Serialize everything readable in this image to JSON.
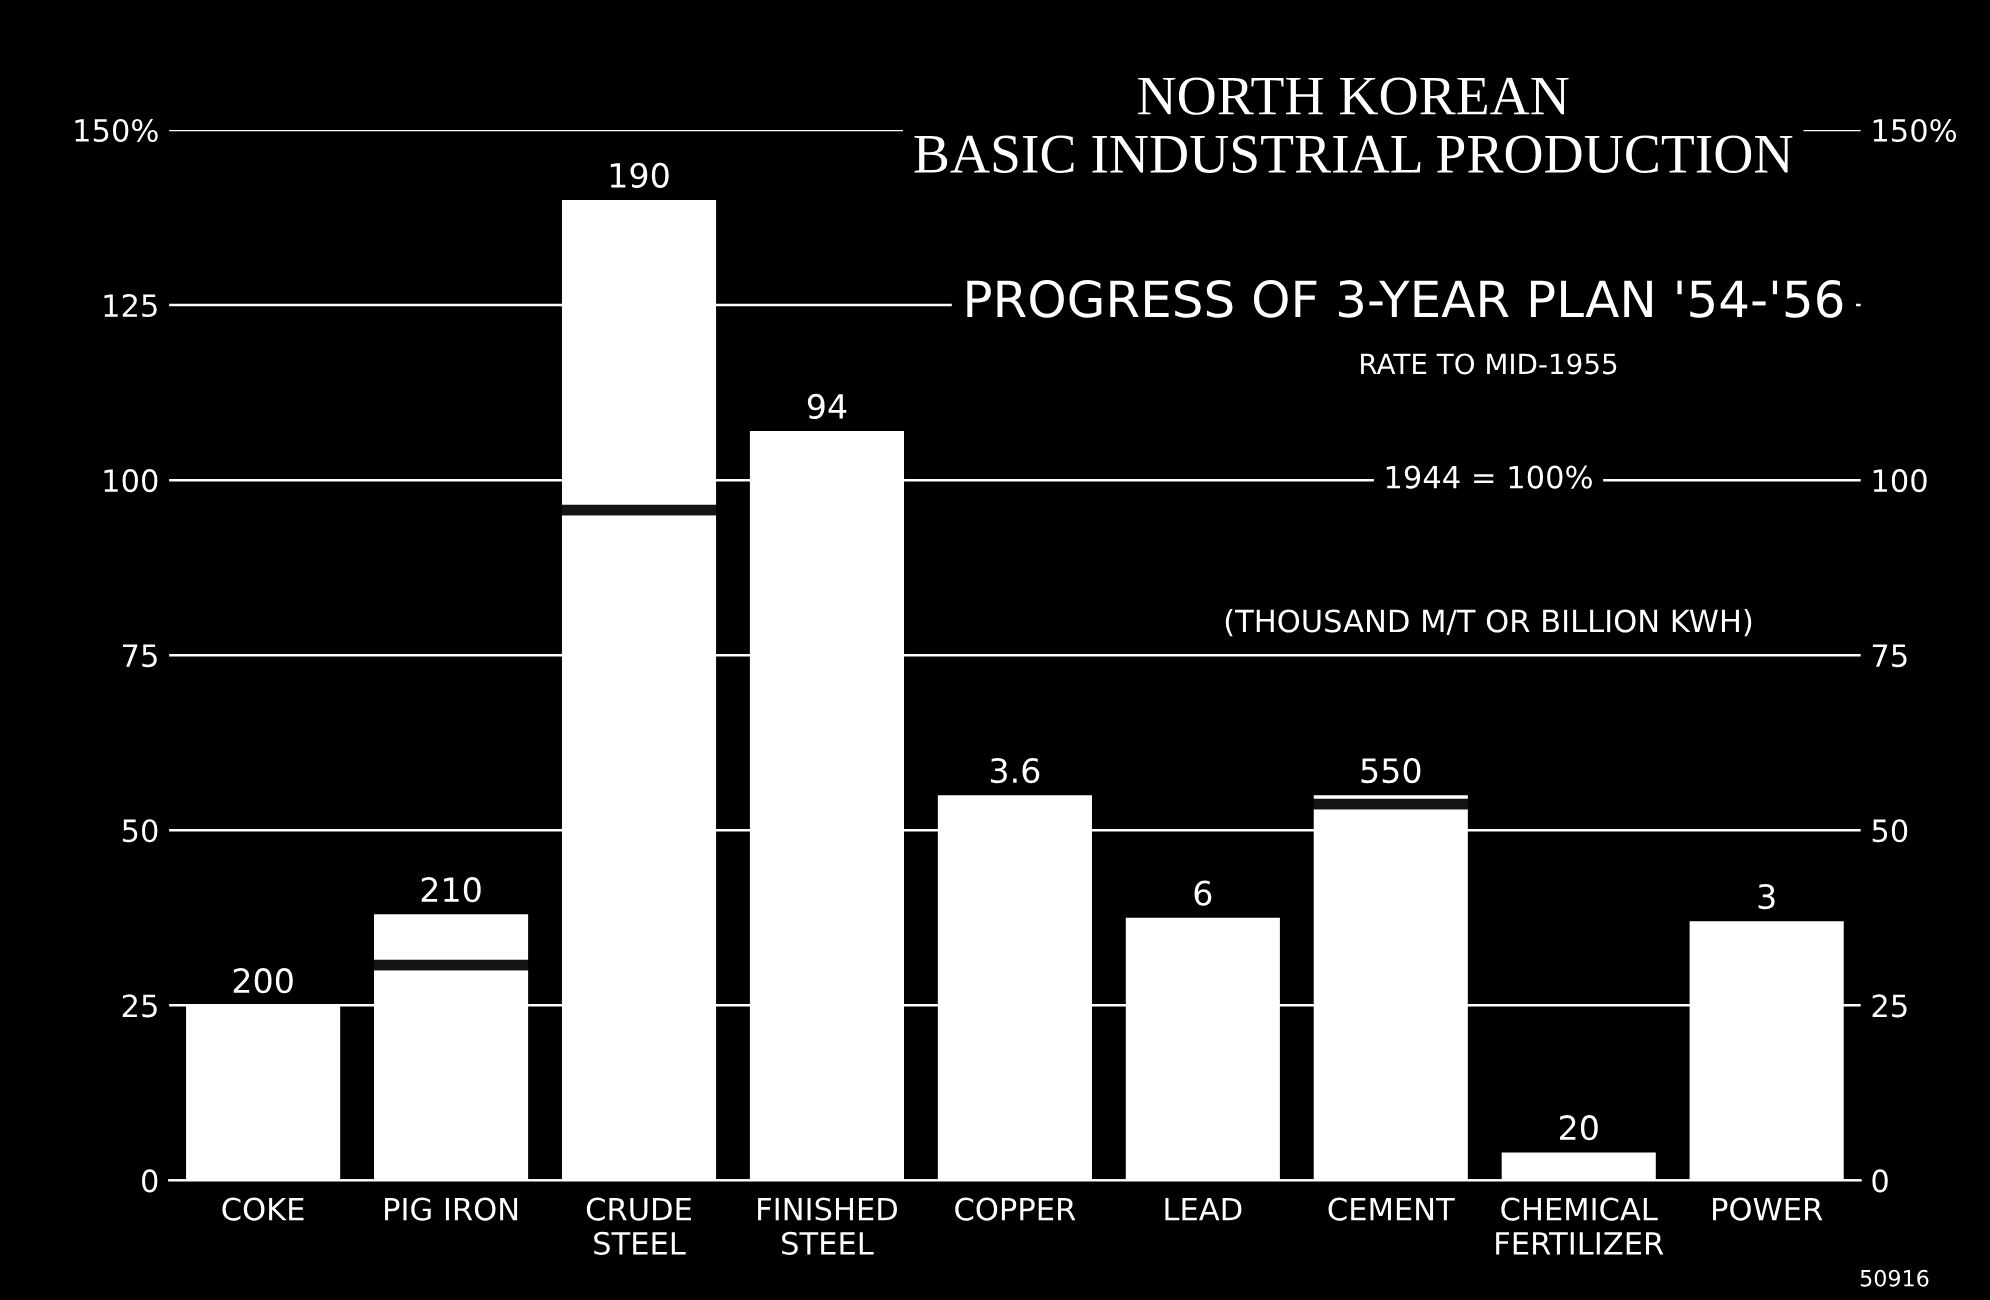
{
  "chart_data": {
    "type": "bar",
    "title": "NORTH KOREAN\nBASIC INDUSTRIAL PRODUCTION",
    "subtitle": "PROGRESS OF 3-YEAR PLAN '54-'56",
    "categories": [
      "COKE",
      "PIG IRON",
      "CRUDE\nSTEEL",
      "FINISHED\nSTEEL",
      "COPPER",
      "LEAD",
      "CEMENT",
      "CHEMICAL\nFERTILIZER",
      "POWER"
    ],
    "stacked": true,
    "series": [
      {
        "color": "#ffffff",
        "values": [
          25,
          30,
          95,
          107,
          55,
          37.5,
          53,
          4,
          37
        ]
      },
      {
        "color": "#141414",
        "values": [
          null,
          1.5,
          1.5,
          null,
          null,
          null,
          1.5,
          null,
          null
        ]
      },
      {
        "color": "#ffffff",
        "values": [
          null,
          6.5,
          43.5,
          null,
          null,
          null,
          0.5,
          null,
          null
        ]
      }
    ],
    "value_labels": [
      "200",
      "210",
      "190",
      "94",
      "3.6",
      "6",
      "550",
      "20",
      "3"
    ],
    "ylim": [
      0,
      150
    ],
    "yticks": [
      0,
      25,
      50,
      75,
      100,
      125,
      {
        "value": 150,
        "label": "150%"
      }
    ],
    "y2lim": [
      0,
      150
    ],
    "y2ticks": [
      0,
      25,
      50,
      75,
      100,
      {
        "value": 150,
        "label": "150%"
      }
    ],
    "grid": "y",
    "legend": false,
    "annotations": [
      "RATE TO MID-1955",
      "1944 = 100%",
      "(THOUSAND M/T OR BILLION KWH)",
      "50916"
    ]
  }
}
